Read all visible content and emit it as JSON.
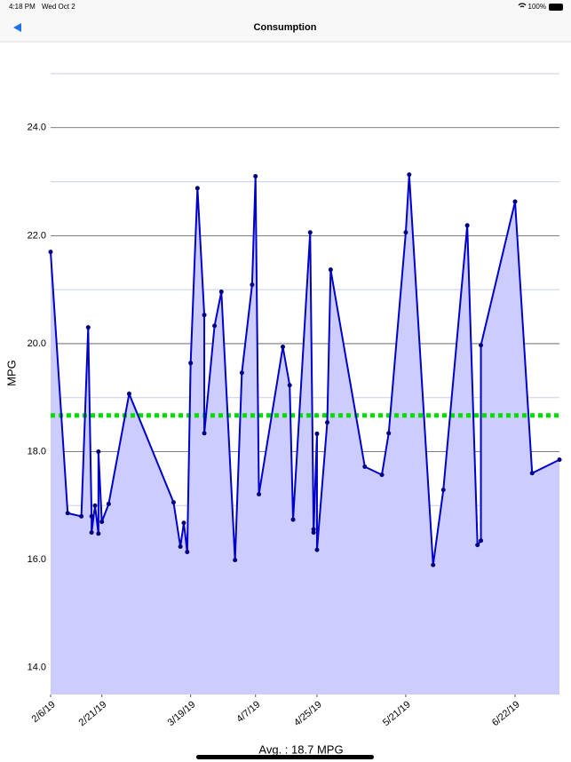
{
  "status_bar": {
    "time": "4:18 PM",
    "date": "Wed Oct 2",
    "battery": "100%"
  },
  "nav": {
    "title": "Consumption"
  },
  "chart_data": {
    "type": "area-line",
    "y_label": "MPG",
    "x": [
      "2019-02-06",
      "2019-02-11",
      "2019-02-15",
      "2019-02-17",
      "2019-02-18",
      "2019-02-18",
      "2019-02-19",
      "2019-02-20",
      "2019-02-20",
      "2019-02-21",
      "2019-02-23",
      "2019-03-01",
      "2019-03-14",
      "2019-03-16",
      "2019-03-17",
      "2019-03-18",
      "2019-03-19",
      "2019-03-21",
      "2019-03-23",
      "2019-03-23",
      "2019-03-26",
      "2019-03-28",
      "2019-04-01",
      "2019-04-03",
      "2019-04-06",
      "2019-04-07",
      "2019-04-08",
      "2019-04-15",
      "2019-04-17",
      "2019-04-18",
      "2019-04-23",
      "2019-04-24",
      "2019-04-24",
      "2019-04-25",
      "2019-04-25",
      "2019-04-28",
      "2019-04-29",
      "2019-05-09",
      "2019-05-14",
      "2019-05-16",
      "2019-05-21",
      "2019-05-22",
      "2019-05-29",
      "2019-06-01",
      "2019-06-08",
      "2019-06-11",
      "2019-06-12",
      "2019-06-12",
      "2019-06-22",
      "2019-06-27",
      "2019-07-05"
    ],
    "values": [
      21.7,
      16.86,
      16.8,
      20.3,
      16.8,
      16.5,
      17.0,
      16.48,
      18.0,
      16.7,
      17.03,
      19.07,
      17.06,
      16.24,
      16.68,
      16.14,
      19.64,
      22.88,
      20.53,
      18.34,
      20.33,
      20.96,
      15.99,
      19.46,
      21.09,
      23.1,
      17.21,
      19.94,
      19.23,
      16.74,
      22.06,
      16.56,
      16.5,
      18.33,
      16.18,
      18.54,
      21.37,
      17.72,
      17.57,
      18.34,
      22.06,
      23.13,
      15.9,
      17.29,
      22.19,
      16.27,
      16.35,
      19.97,
      22.63,
      17.6,
      17.85
    ],
    "color": "#0000cc",
    "fill_color": "#ccccff",
    "marker_color": "#000080",
    "average": 18.67,
    "average_color": "#00dd00",
    "xlim": [
      "2019-02-06",
      "2019-07-05"
    ],
    "xticks": [
      {
        "value": "2019-02-06",
        "label": "2/6/19"
      },
      {
        "value": "2019-02-21",
        "label": "2/21/19"
      },
      {
        "value": "2019-03-19",
        "label": "3/19/19"
      },
      {
        "value": "2019-04-07",
        "label": "4/7/19"
      },
      {
        "value": "2019-04-25",
        "label": "4/25/19"
      },
      {
        "value": "2019-05-21",
        "label": "5/21/19"
      },
      {
        "value": "2019-06-22",
        "label": "6/22/19"
      }
    ],
    "ylim": [
      13.5,
      25
    ],
    "yticks": [
      {
        "value": 14,
        "label": "14.0"
      },
      {
        "value": 16,
        "label": "16.0"
      },
      {
        "value": 18,
        "label": "18.0"
      },
      {
        "value": 20,
        "label": "20.0"
      },
      {
        "value": 22,
        "label": "22.0"
      },
      {
        "value": 24,
        "label": "24.0"
      }
    ],
    "yminor": [
      15,
      17,
      19,
      21,
      23,
      25
    ],
    "grid": true
  },
  "footer": {
    "average_label": "Avg. : 18.7 MPG"
  }
}
